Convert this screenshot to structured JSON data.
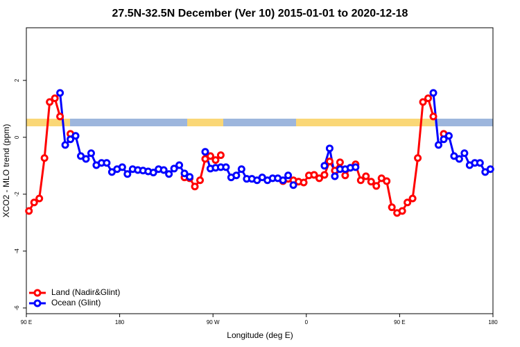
{
  "chart_data": {
    "type": "line",
    "title": "27.5N-32.5N December (Ver 10)   2015-01-01 to 2020-12-18",
    "x_label": "Longitude (deg E)",
    "y_label": "XCO2 - MLO trend (ppm)",
    "xlim": [
      90,
      540
    ],
    "ylim": [
      -6.2,
      3.85
    ],
    "xticks": [
      {
        "value": 90,
        "label": "90 E"
      },
      180,
      {
        "value": 270,
        "label": "90 W"
      },
      {
        "value": 360,
        "label": "0"
      },
      {
        "value": 450,
        "label": "90 E"
      },
      {
        "value": 540,
        "label": "180"
      }
    ],
    "yticks": [
      -6,
      -4,
      -2,
      0,
      2
    ],
    "legend": "bottom-left",
    "x": [
      92.5,
      97.5,
      102.5,
      107.5,
      112.5,
      117.5,
      122.5,
      127.5,
      132.5,
      137.5,
      142.5,
      147.5,
      152.5,
      157.5,
      162.5,
      167.5,
      172.5,
      177.5,
      182.5,
      187.5,
      192.5,
      197.5,
      202.5,
      207.5,
      212.5,
      217.5,
      222.5,
      227.5,
      232.5,
      237.5,
      242.5,
      247.5,
      252.5,
      257.5,
      262.5,
      267.5,
      272.5,
      277.5,
      282.5,
      287.5,
      292.5,
      297.5,
      302.5,
      307.5,
      312.5,
      317.5,
      322.5,
      327.5,
      332.5,
      337.5,
      342.5,
      347.5,
      352.5,
      357.5,
      362.5,
      367.5,
      372.5,
      377.5,
      382.5,
      387.5,
      392.5,
      397.5,
      402.5,
      407.5,
      412.5,
      417.5,
      422.5,
      427.5,
      432.5,
      437.5,
      442.5,
      447.5,
      452.5,
      457.5,
      462.5,
      467.5,
      472.5,
      477.5,
      482.5,
      487.5,
      492.5,
      497.5,
      502.5,
      507.5,
      512.5,
      517.5,
      522.5,
      527.5,
      532.5,
      537.5
    ],
    "series": [
      {
        "name": "Land (Nadir&Glint)",
        "color": "#ff0000",
        "values": [
          -2.59,
          -2.29,
          -2.15,
          -0.73,
          1.24,
          1.37,
          0.73,
          null,
          0.12,
          null,
          null,
          null,
          null,
          null,
          null,
          null,
          null,
          null,
          null,
          null,
          null,
          null,
          null,
          null,
          null,
          null,
          null,
          null,
          null,
          null,
          -1.41,
          -1.44,
          -1.73,
          -1.51,
          -0.76,
          -0.66,
          -0.8,
          -0.63,
          null,
          null,
          null,
          null,
          null,
          null,
          null,
          null,
          null,
          null,
          null,
          -1.54,
          -1.46,
          -1.51,
          -1.56,
          -1.59,
          -1.34,
          -1.32,
          -1.44,
          -1.32,
          -0.85,
          -1.17,
          -0.88,
          -1.34,
          -1.07,
          -0.95,
          -1.51,
          -1.37,
          -1.56,
          -1.71,
          -1.44,
          -1.54,
          -2.46,
          -2.66,
          -2.59,
          -2.29,
          -2.15,
          -0.73,
          1.24,
          1.37,
          0.73,
          null,
          0.12,
          null,
          null,
          null,
          null,
          null,
          null,
          null,
          null,
          null
        ]
      },
      {
        "name": "Ocean (Glint)",
        "color": "#0000ff",
        "values": [
          null,
          null,
          null,
          null,
          null,
          null,
          1.56,
          -0.27,
          -0.07,
          0.05,
          -0.66,
          -0.76,
          -0.56,
          -0.98,
          -0.9,
          -0.9,
          -1.22,
          -1.12,
          -1.05,
          -1.29,
          -1.12,
          -1.15,
          -1.17,
          -1.2,
          -1.24,
          -1.12,
          -1.15,
          -1.29,
          -1.1,
          -0.98,
          -1.27,
          -1.39,
          null,
          null,
          -0.51,
          -1.1,
          -1.07,
          -1.05,
          -1.05,
          -1.41,
          -1.34,
          -1.12,
          -1.46,
          -1.46,
          -1.51,
          -1.41,
          -1.51,
          -1.44,
          -1.44,
          -1.51,
          -1.34,
          -1.68,
          null,
          null,
          null,
          null,
          null,
          -1.0,
          -0.39,
          -1.37,
          -1.12,
          -1.12,
          -1.07,
          -1.05,
          null,
          null,
          null,
          null,
          null,
          null,
          null,
          null,
          null,
          null,
          null,
          null,
          null,
          null,
          1.56,
          -0.27,
          -0.07,
          0.05,
          -0.66,
          -0.76,
          -0.56,
          -0.98,
          -0.9,
          -0.9,
          -1.22,
          -1.12
        ]
      }
    ]
  }
}
